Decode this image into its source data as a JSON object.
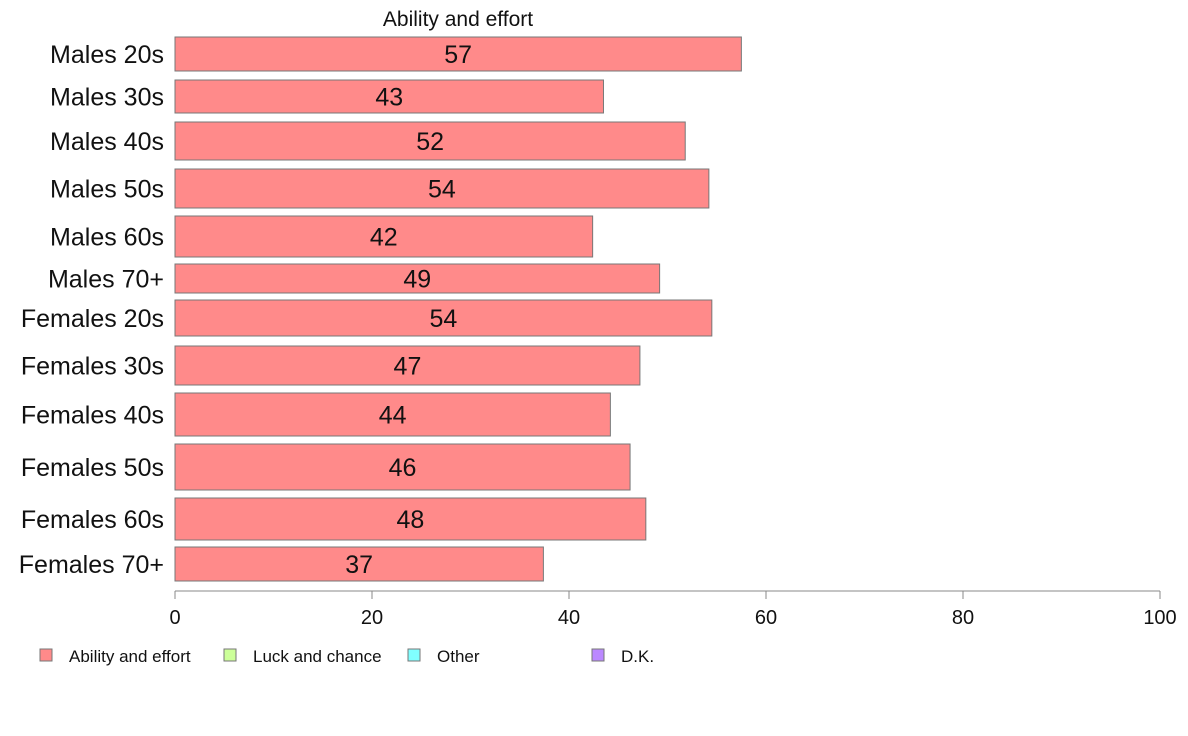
{
  "chart_data": {
    "type": "bar",
    "orientation": "horizontal",
    "title": "Ability and effort",
    "categories": [
      "Males 20s",
      "Males 30s",
      "Males 40s",
      "Males 50s",
      "Males 60s",
      "Males 70+",
      "Females 20s",
      "Females 30s",
      "Females 40s",
      "Females 50s",
      "Females 60s",
      "Females 70+"
    ],
    "series": [
      {
        "name": "Ability and effort",
        "values": [
          57.5,
          43.5,
          51.8,
          54.2,
          42.4,
          49.2,
          54.5,
          47.2,
          44.2,
          46.2,
          47.8,
          37.4
        ]
      }
    ],
    "value_labels": [
      "57",
      "43",
      "52",
      "54",
      "42",
      "49",
      "54",
      "47",
      "44",
      "46",
      "48",
      "37"
    ],
    "xlim": [
      0,
      100
    ],
    "xticks": [
      0,
      20,
      40,
      60,
      80,
      100
    ],
    "grid": false,
    "legend": {
      "position": "bottom",
      "entries": [
        {
          "label": "Ability and effort",
          "color": "#ff8a8a"
        },
        {
          "label": "Luck and chance",
          "color": "#ccff99"
        },
        {
          "label": "Other",
          "color": "#80ffff"
        },
        {
          "label": "D.K.",
          "color": "#bb88ff"
        }
      ]
    },
    "colors": {
      "bar": "#ff8a8a",
      "bar_stroke": "#777777",
      "axis": "#888888"
    }
  }
}
